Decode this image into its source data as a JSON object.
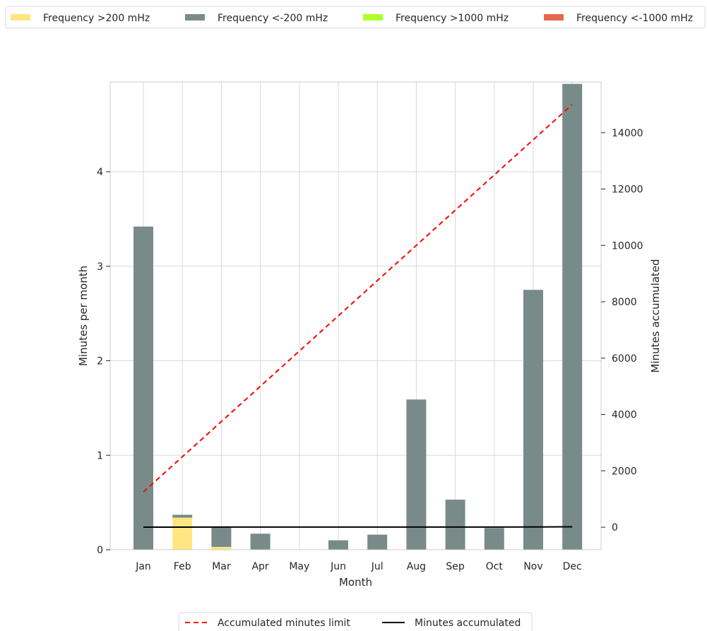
{
  "chart_data": {
    "type": "bar",
    "categories": [
      "Jan",
      "Feb",
      "Mar",
      "Apr",
      "May",
      "Jun",
      "Jul",
      "Aug",
      "Sep",
      "Oct",
      "Nov",
      "Dec"
    ],
    "xlabel": "Month",
    "ylabel": "Minutes per month",
    "ylabel_right": "Minutes accumulated",
    "ylim": [
      0,
      4.95
    ],
    "ylim_right": [
      -800,
      15800
    ],
    "yticks": [
      0,
      1,
      2,
      3,
      4
    ],
    "yticks_right": [
      0,
      2000,
      4000,
      6000,
      8000,
      10000,
      12000,
      14000
    ],
    "grid": true,
    "stacked": true,
    "series": [
      {
        "name": "Frequency >200 mHz",
        "color": "#FFE680",
        "values": [
          0,
          0.34,
          0.03,
          0,
          0,
          0,
          0,
          0,
          0,
          0,
          0,
          0
        ]
      },
      {
        "name": "Frequency <-200 mHz",
        "color": "#798B89",
        "values": [
          3.42,
          0.03,
          0.21,
          0.17,
          0,
          0.1,
          0.16,
          1.59,
          0.53,
          0.23,
          2.75,
          4.93
        ]
      },
      {
        "name": "Frequency >1000 mHz",
        "color": "#ADFF2F",
        "values": [
          0,
          0,
          0,
          0,
          0,
          0,
          0,
          0,
          0,
          0,
          0,
          0
        ]
      },
      {
        "name": "Frequency <-1000 mHz",
        "color": "#E8674B",
        "values": [
          0,
          0,
          0,
          0,
          0,
          0,
          0,
          0,
          0,
          0,
          0,
          0
        ]
      }
    ],
    "lines": [
      {
        "name": "Accumulated minutes limit",
        "axis": "right",
        "style": "dashed",
        "color": "#FF0000",
        "values": [
          1250,
          2500,
          3750,
          5000,
          6250,
          7500,
          8750,
          10000,
          11250,
          12500,
          13750,
          15000
        ]
      },
      {
        "name": "Minutes accumulated",
        "axis": "right",
        "style": "solid",
        "color": "#000000",
        "values": [
          3.42,
          3.79,
          4.03,
          4.2,
          4.2,
          4.3,
          4.46,
          6.05,
          6.58,
          6.81,
          9.56,
          14.49
        ]
      }
    ],
    "legend_top": "top, above plot",
    "legend_bottom": "bottom, below plot"
  }
}
